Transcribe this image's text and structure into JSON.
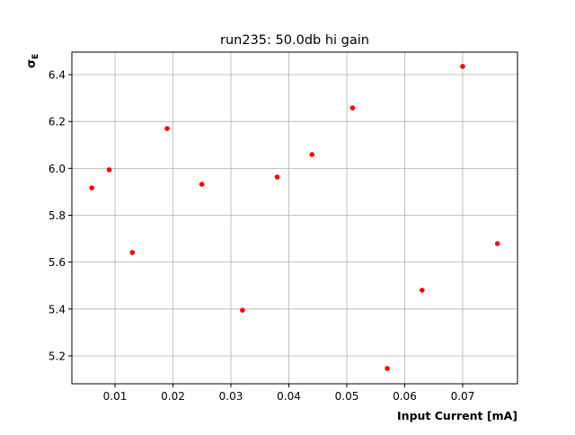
{
  "chart_data": {
    "type": "scatter",
    "title": "run235: 50.0db hi gain",
    "xlabel": "Input Current [mA]",
    "ylabel": "σ",
    "ylabel_subscript": "E",
    "xlim": [
      0.00256,
      0.07946
    ],
    "ylim": [
      5.081,
      6.496
    ],
    "xticks": [
      0.01,
      0.02,
      0.03,
      0.04,
      0.05,
      0.06,
      0.07
    ],
    "xtick_labels": [
      "0.01",
      "0.02",
      "0.03",
      "0.04",
      "0.05",
      "0.06",
      "0.07"
    ],
    "yticks": [
      5.2,
      5.4,
      5.6,
      5.8,
      6.0,
      6.2,
      6.4
    ],
    "ytick_labels": [
      "5.2",
      "5.4",
      "5.6",
      "5.8",
      "6.0",
      "6.2",
      "6.4"
    ],
    "grid": true,
    "marker_color": "#ff0000",
    "points": [
      {
        "x": 0.006,
        "y": 5.917
      },
      {
        "x": 0.009,
        "y": 5.994
      },
      {
        "x": 0.013,
        "y": 5.641
      },
      {
        "x": 0.019,
        "y": 6.17
      },
      {
        "x": 0.025,
        "y": 5.932
      },
      {
        "x": 0.032,
        "y": 5.395
      },
      {
        "x": 0.038,
        "y": 5.963
      },
      {
        "x": 0.044,
        "y": 6.059
      },
      {
        "x": 0.051,
        "y": 6.258
      },
      {
        "x": 0.057,
        "y": 5.146
      },
      {
        "x": 0.063,
        "y": 5.48
      },
      {
        "x": 0.07,
        "y": 6.435
      },
      {
        "x": 0.076,
        "y": 5.679
      }
    ]
  }
}
